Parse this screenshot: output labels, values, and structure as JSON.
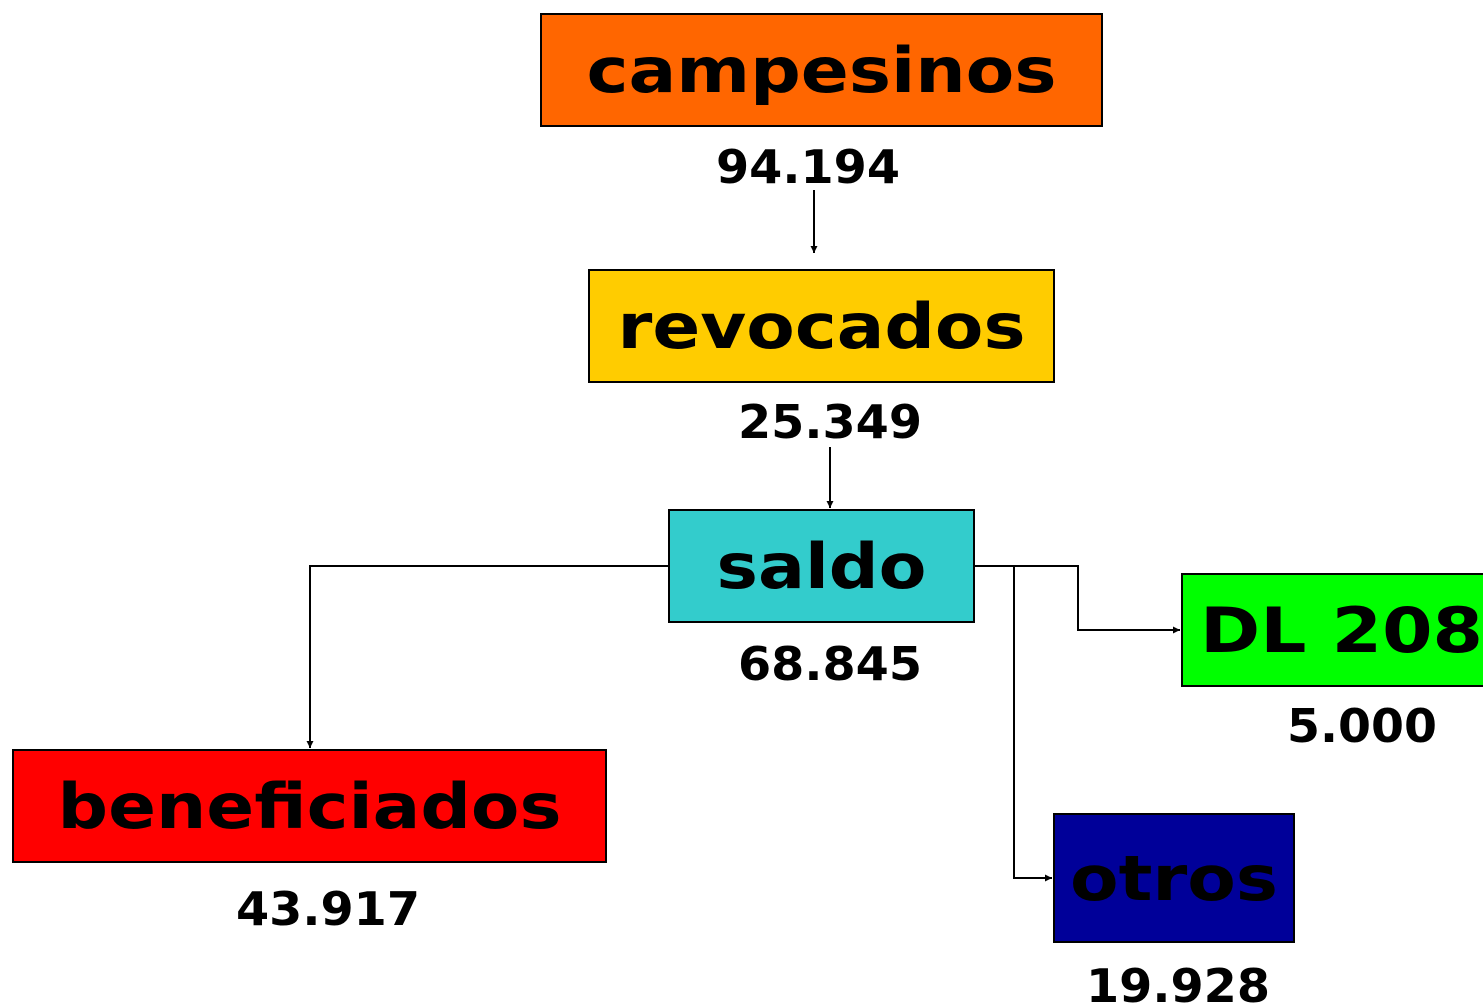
{
  "nodes": [
    {
      "label": "campesinos",
      "value": "94.194"
    },
    {
      "label": "revocados",
      "value": "25.349"
    },
    {
      "label": "saldo",
      "value": "68.845"
    },
    {
      "label": "beneficiados",
      "value": "43.917"
    },
    {
      "label": "DL 208",
      "value": "5.000"
    },
    {
      "label": "otros",
      "value": "19.928"
    }
  ]
}
